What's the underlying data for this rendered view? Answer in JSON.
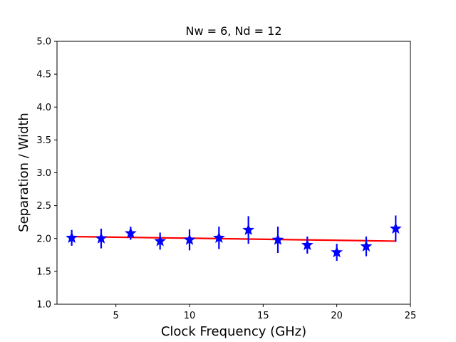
{
  "chart_data": {
    "type": "scatter",
    "title": "Nw = 6, Nd = 12",
    "xlabel": "Clock Frequency (GHz)",
    "ylabel": "Separation / Width",
    "xlim": [
      1,
      25
    ],
    "ylim": [
      1.0,
      5.0
    ],
    "xticks": [
      5,
      10,
      15,
      20,
      25
    ],
    "xtick_labels": [
      "5",
      "10",
      "15",
      "20",
      "25"
    ],
    "yticks": [
      1.0,
      1.5,
      2.0,
      2.5,
      3.0,
      3.5,
      4.0,
      4.5,
      5.0
    ],
    "ytick_labels": [
      "1.0",
      "1.5",
      "2.0",
      "2.5",
      "3.0",
      "3.5",
      "4.0",
      "4.5",
      "5.0"
    ],
    "grid": false,
    "series": [
      {
        "kind": "errorbar-points",
        "marker": "star",
        "color": "#0000ff",
        "x": [
          2,
          4,
          6,
          8,
          10,
          12,
          14,
          16,
          18,
          20,
          22,
          24
        ],
        "y": [
          2.01,
          2.0,
          2.08,
          1.96,
          1.98,
          2.01,
          2.13,
          1.98,
          1.9,
          1.79,
          1.88,
          2.15
        ],
        "yerr": [
          0.12,
          0.15,
          0.1,
          0.13,
          0.16,
          0.17,
          0.21,
          0.2,
          0.13,
          0.13,
          0.15,
          0.2
        ]
      },
      {
        "kind": "fit-line",
        "color": "#ff0000",
        "x": [
          2,
          24
        ],
        "y": [
          2.03,
          1.96
        ]
      }
    ]
  }
}
